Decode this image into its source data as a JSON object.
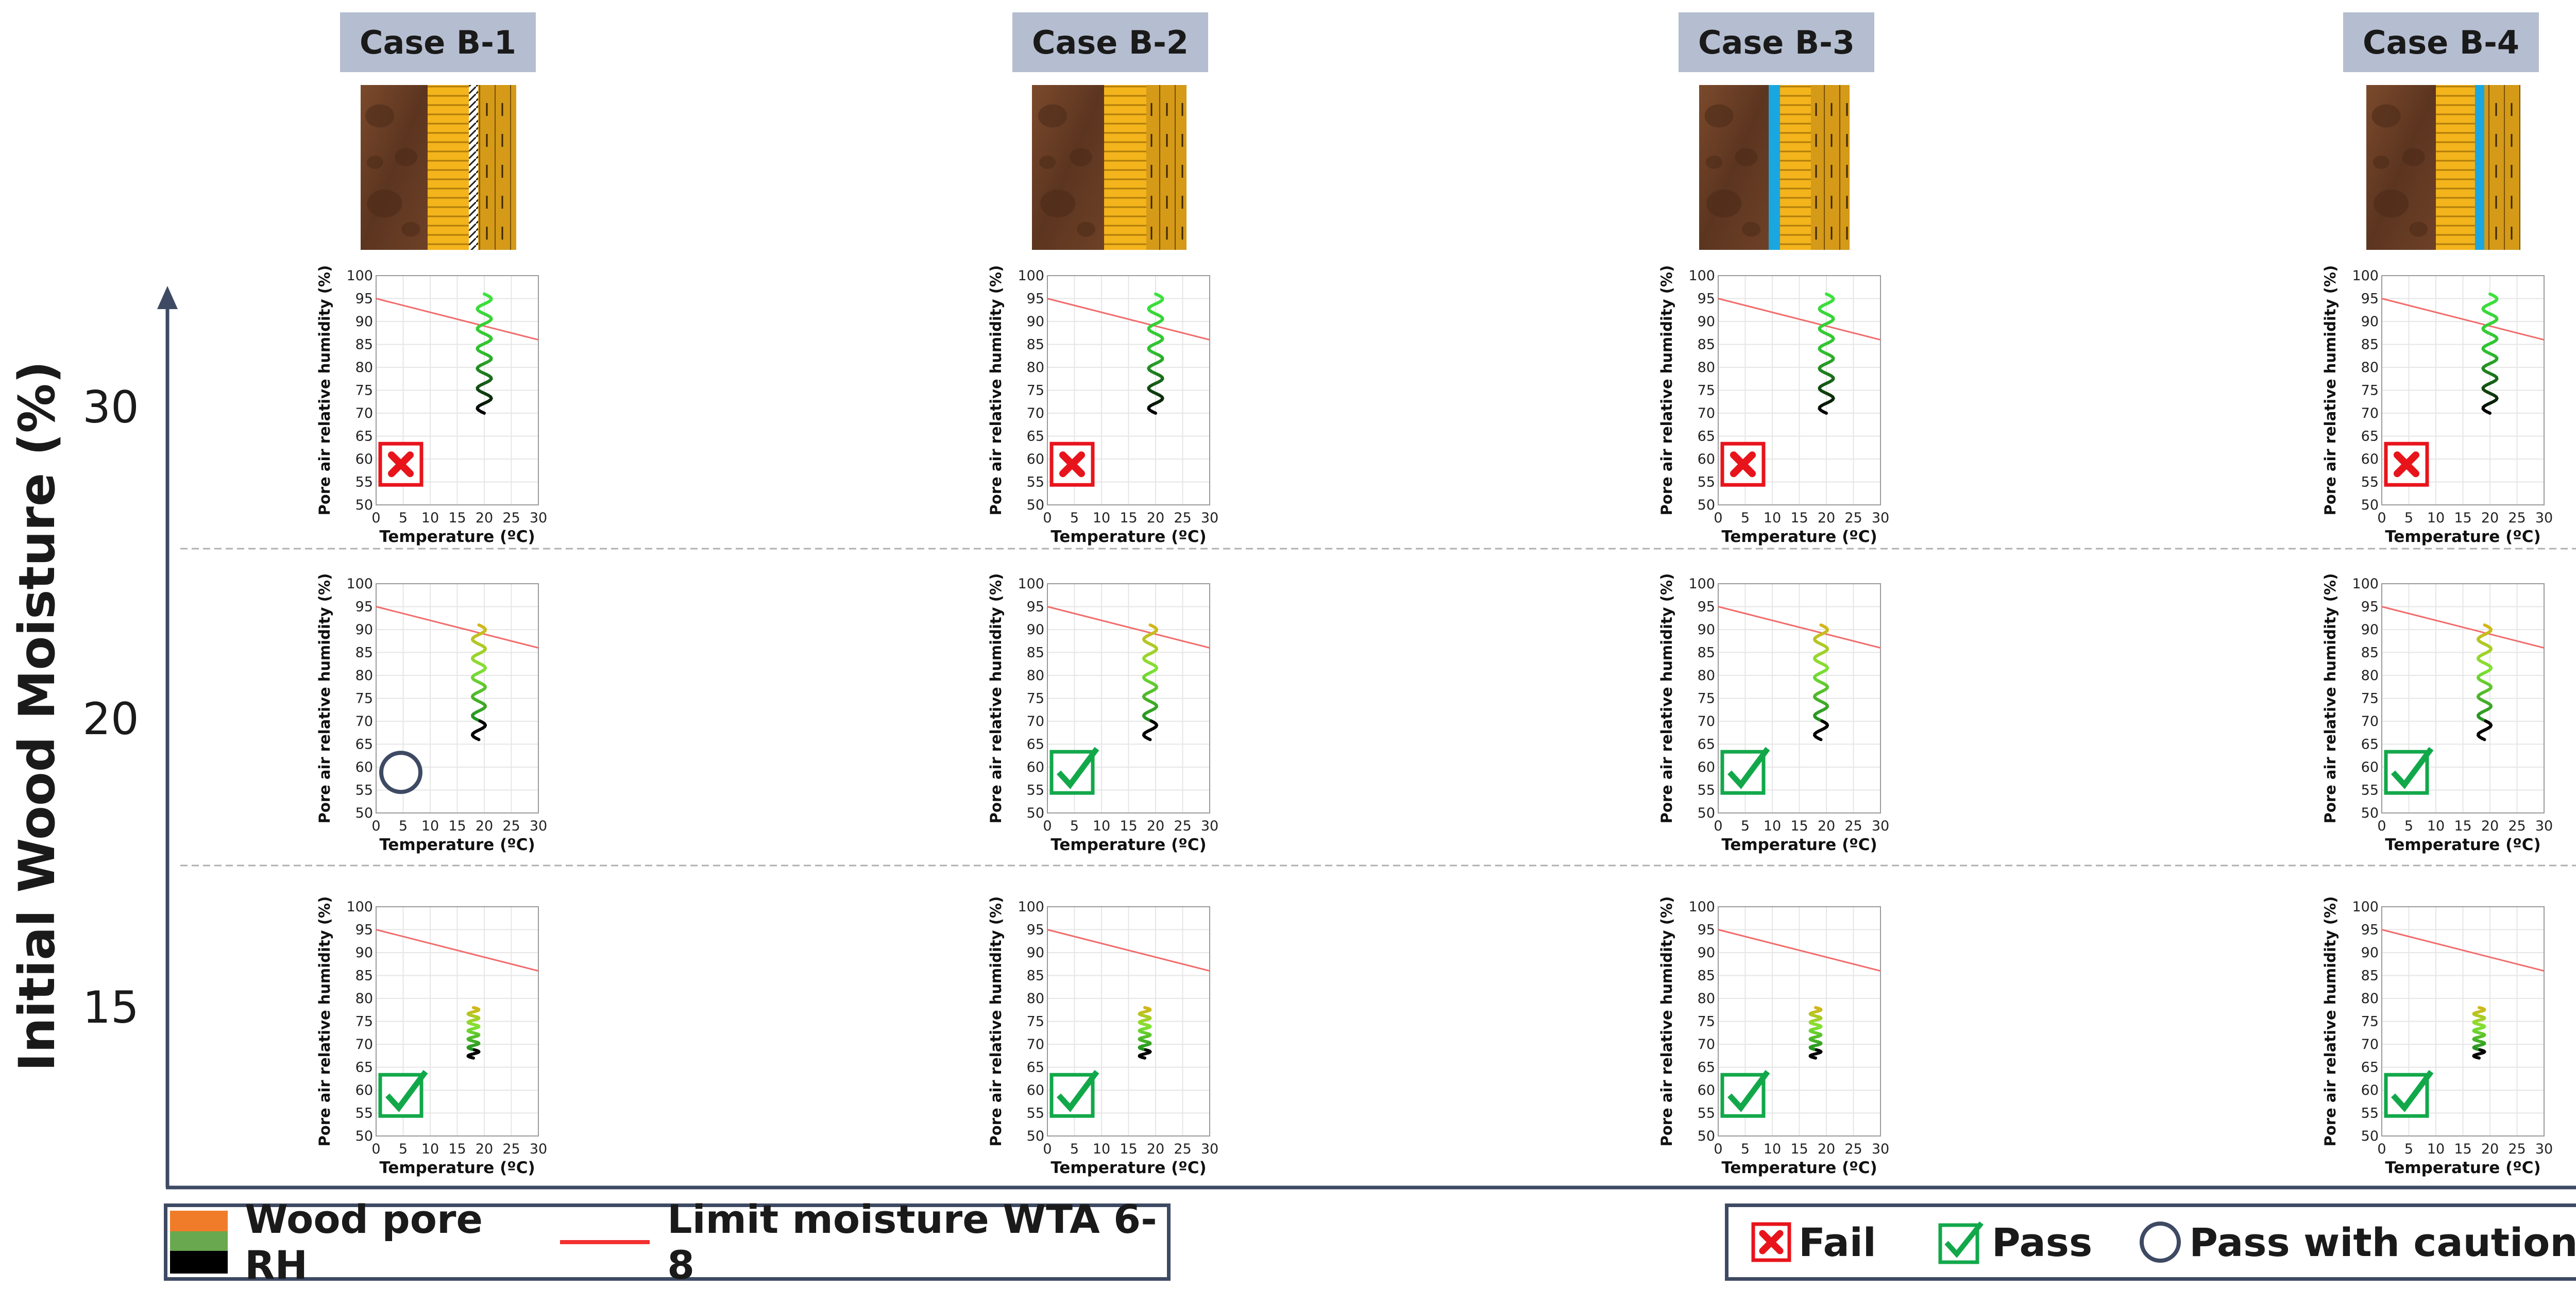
{
  "header": {
    "cases": [
      "Case B-1",
      "Case B-2",
      "Case B-3",
      "Case B-4"
    ]
  },
  "y_axis": {
    "title": "Initial Wood Moisture (%)",
    "levels": [
      "30",
      "20",
      "15"
    ]
  },
  "legend": {
    "left": {
      "rh_label": "Wood pore RH",
      "limit_label": "Limit moisture WTA 6-8"
    },
    "right": {
      "fail_label": "Fail",
      "pass_label": "Pass",
      "caution_label": "Pass with caution"
    }
  },
  "colors": {
    "axis": "#3e4a63",
    "limit_line": "#f26b6b",
    "fail": "#e8141c",
    "pass": "#12a84a",
    "caution": "#3e4a63",
    "case_bg": "#b5bed0",
    "rh_orange": "#f07c2a",
    "rh_green": "#6aa84f",
    "rh_black": "#000000"
  },
  "chart_data": {
    "type": "line",
    "layout": "3 rows x 4 columns of small-multiple climate plots",
    "rows": [
      "30",
      "20",
      "15"
    ],
    "columns": [
      "Case B-1",
      "Case B-2",
      "Case B-3",
      "Case B-4"
    ],
    "xlabel": "Temperature (ºC)",
    "ylabel": "Pore air relative humidity (%)",
    "xlim": [
      0,
      30
    ],
    "ylim": [
      50,
      100
    ],
    "x_ticks": [
      "0",
      "5",
      "10",
      "15",
      "20",
      "25",
      "30"
    ],
    "y_ticks": [
      "50",
      "55",
      "60",
      "65",
      "70",
      "75",
      "80",
      "85",
      "90",
      "95",
      "100"
    ],
    "limit_line": {
      "name": "Limit moisture WTA 6-8",
      "x": [
        0,
        30
      ],
      "y": [
        95,
        86
      ]
    },
    "series_by_row": [
      {
        "row": "30",
        "x_center": 20,
        "amplitude": 1.3,
        "rh_top": 96,
        "rh_bottom": 70
      },
      {
        "row": "20",
        "x_center": 19,
        "amplitude": 1.2,
        "rh_top": 91,
        "rh_bottom": 66
      },
      {
        "row": "15",
        "x_center": 18,
        "amplitude": 1.0,
        "rh_top": 78,
        "rh_bottom": 67
      }
    ],
    "results": [
      [
        "fail",
        "fail",
        "fail",
        "fail"
      ],
      [
        "caution",
        "pass",
        "pass",
        "pass"
      ],
      [
        "pass",
        "pass",
        "pass",
        "pass"
      ]
    ]
  }
}
